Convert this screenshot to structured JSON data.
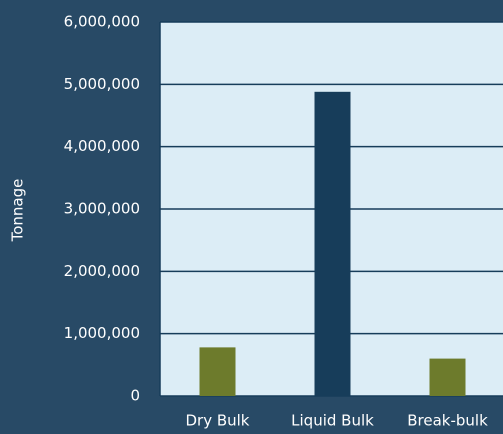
{
  "chart_data": {
    "type": "bar",
    "y_label": "Tonnage",
    "categories": [
      "Dry Bulk",
      "Liquid Bulk",
      "Break-bulk"
    ],
    "values": [
      780000,
      4880000,
      600000
    ],
    "colors": [
      "#6d7b2c",
      "#173d5a",
      "#6d7b2c"
    ],
    "ylim": [
      0,
      6000000
    ],
    "yticks": [
      0,
      {
        "value": 1000000,
        "label": "1,000,000"
      },
      {
        "value": 2000000,
        "label": "2,000,000"
      },
      {
        "value": 3000000,
        "label": "3,000,000"
      },
      {
        "value": 4000000,
        "label": "4,000,000"
      },
      {
        "value": 5000000,
        "label": "5,000,000"
      },
      {
        "value": 6000000,
        "label": "6,000,000"
      }
    ],
    "grid": true
  }
}
